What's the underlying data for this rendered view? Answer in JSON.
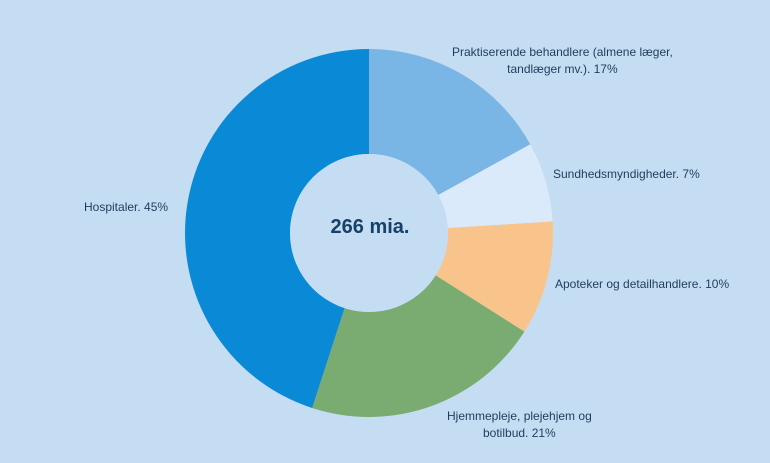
{
  "chart_data": {
    "type": "pie",
    "center_label": "266 mia.",
    "slices": [
      {
        "label_lines": [
          "Praktiserende behandlere (almene læger,",
          "tandlæger mv.). 17%"
        ],
        "value": 17,
        "color": "#79b6e6"
      },
      {
        "label_lines": [
          "Sundhedsmyndigheder. 7%"
        ],
        "value": 7,
        "color": "#dbeafa"
      },
      {
        "label_lines": [
          "Apoteker og detailhandlere. 10%"
        ],
        "value": 10,
        "color": "#f9c48c"
      },
      {
        "label_lines": [
          "Hjemmepleje, plejehjem og",
          "botilbud. 21%"
        ],
        "value": 21,
        "color": "#7aab70"
      },
      {
        "label_lines": [
          "Hospitaler. 45%"
        ],
        "value": 45,
        "color": "#0a8ad6"
      }
    ]
  }
}
